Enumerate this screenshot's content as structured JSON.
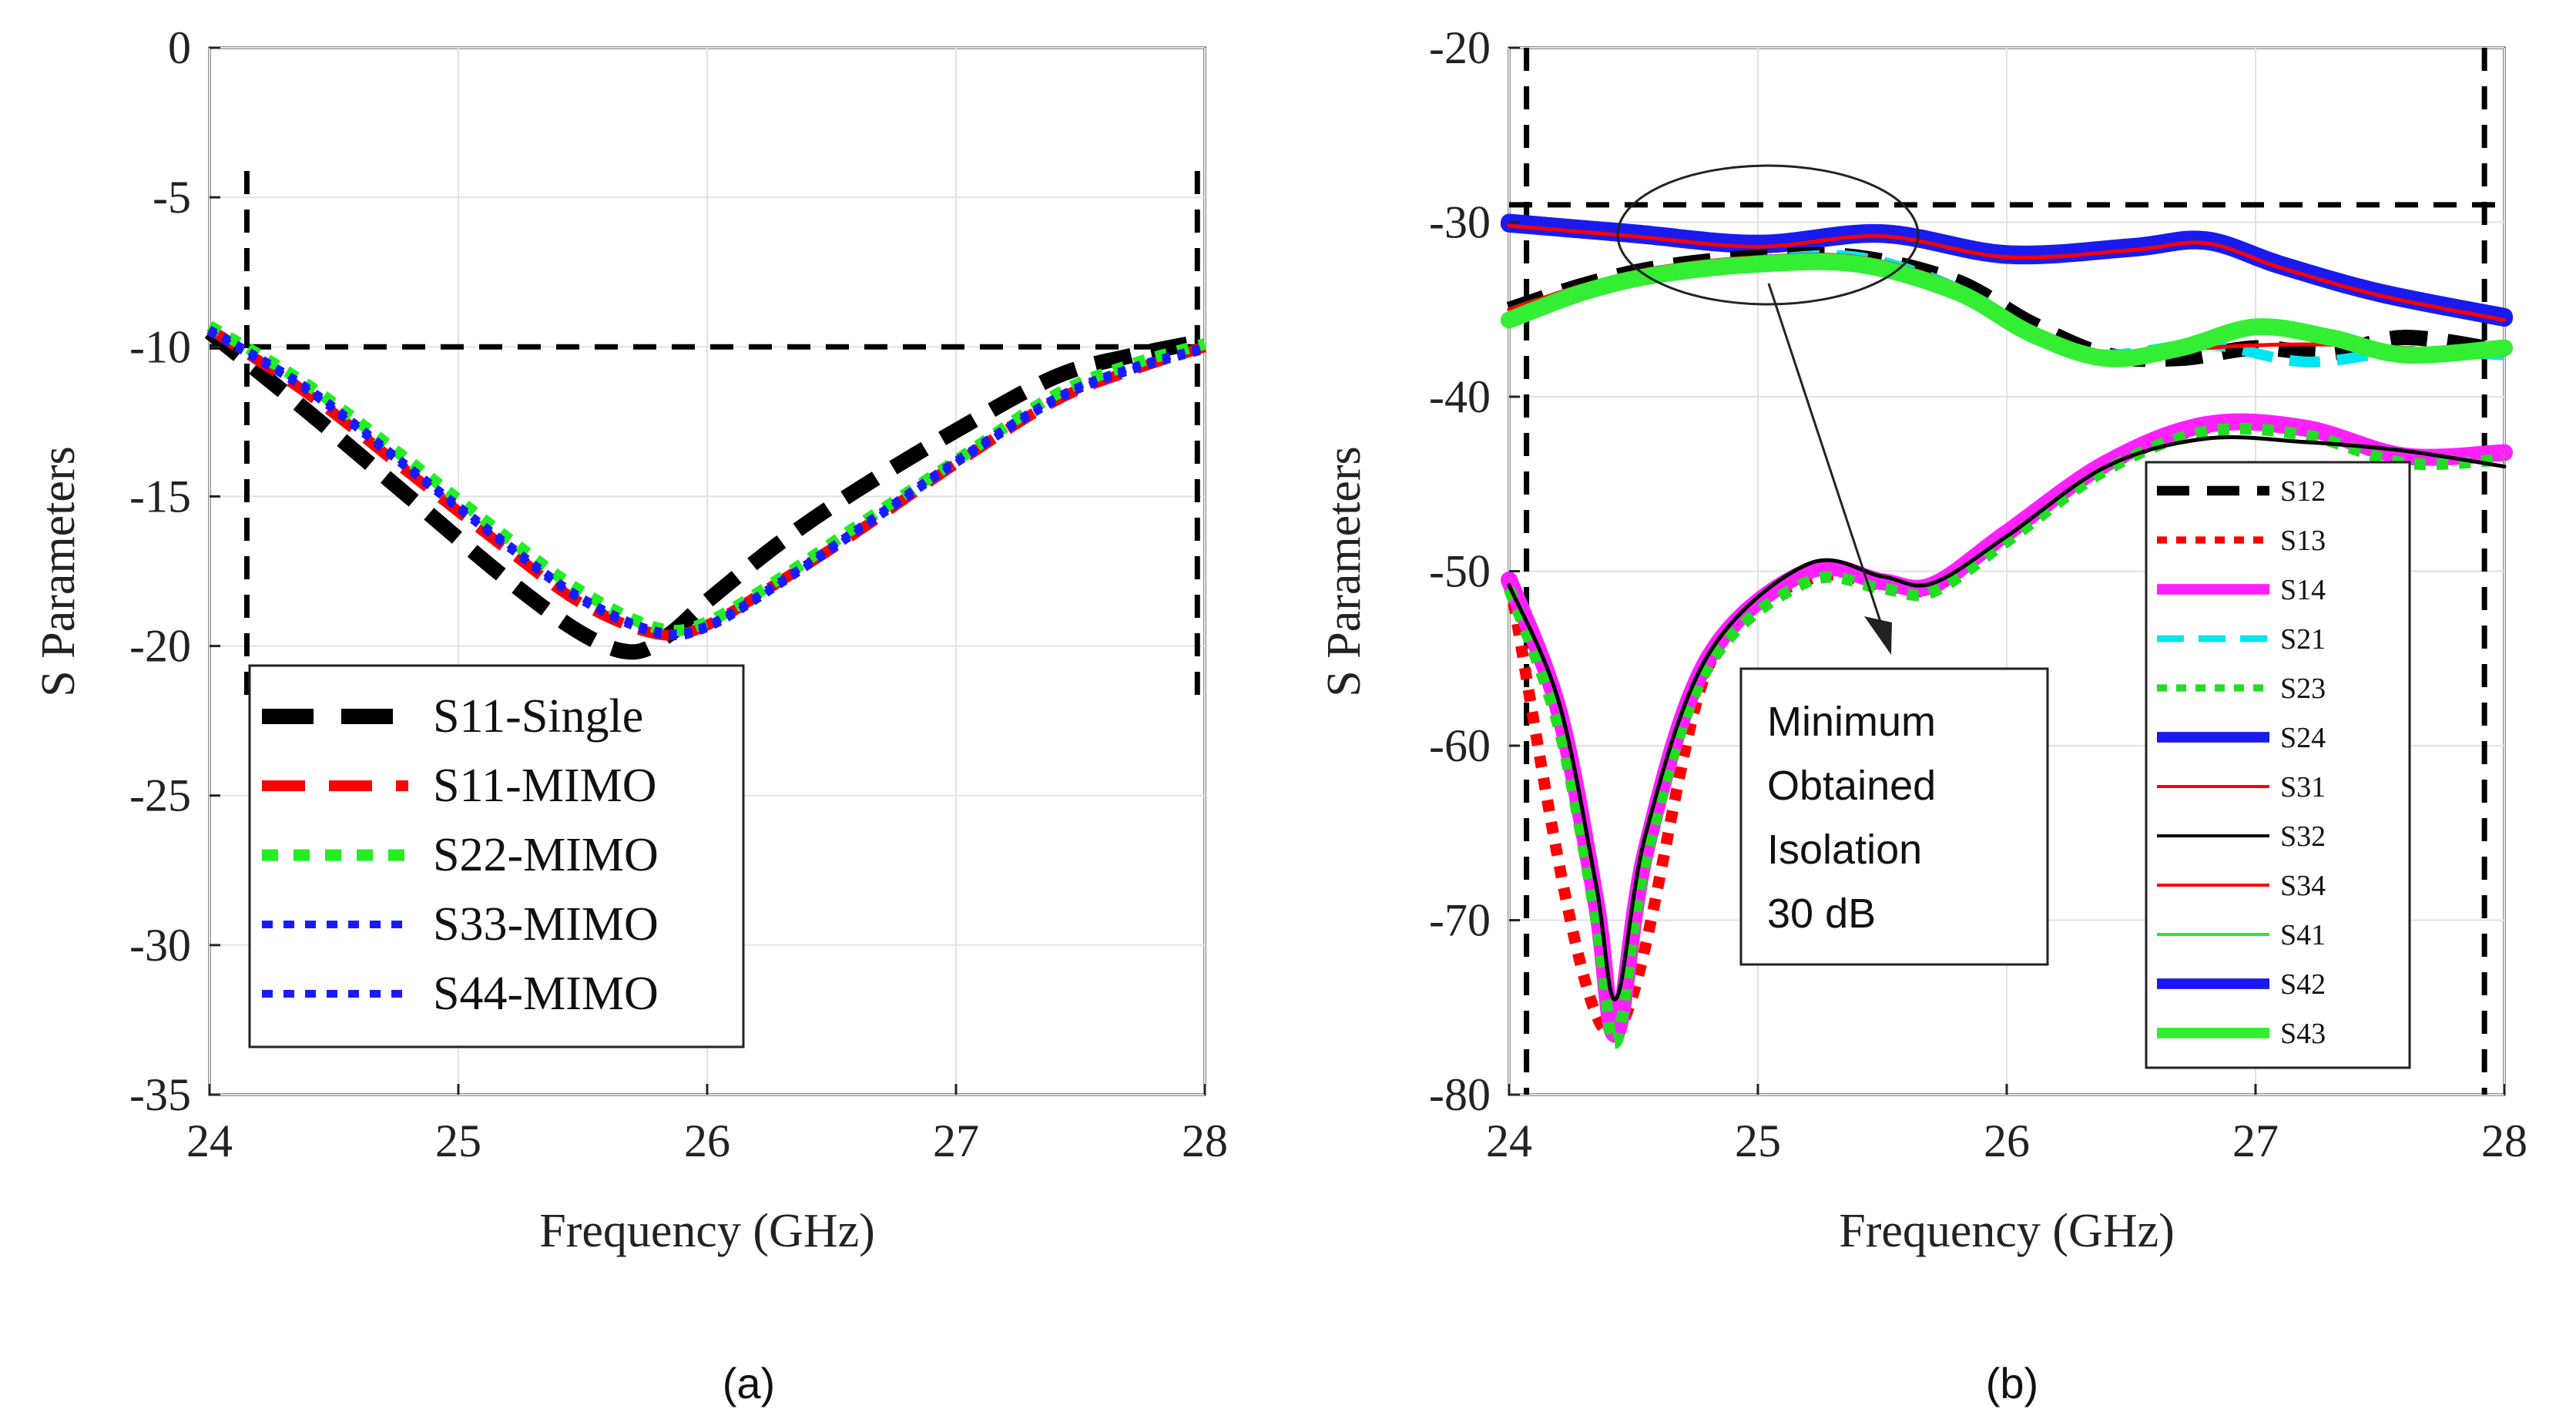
{
  "chart_data": [
    {
      "type": "line",
      "panel": "a",
      "caption": "(a)",
      "xlabel": "Frequency (GHz)",
      "ylabel": "S Parameters",
      "xlim": [
        24,
        28
      ],
      "ylim": [
        -35,
        0
      ],
      "xticks": [
        24,
        25,
        26,
        27,
        28
      ],
      "xtick_labels": [
        "24",
        "25",
        "26",
        "27",
        "28"
      ],
      "yticks": [
        0,
        -5,
        -10,
        -15,
        -20,
        -25,
        -30,
        -35
      ],
      "ytick_labels": [
        "0",
        "-5",
        "-10",
        "-15",
        "-20",
        "-25",
        "-30",
        "-35"
      ],
      "grid": true,
      "legend_position": "bottom-left",
      "reference_lines": [
        {
          "orientation": "horizontal",
          "value": -10,
          "color": "#000000"
        },
        {
          "orientation": "vertical",
          "value": 24.15,
          "color": "#000000"
        },
        {
          "orientation": "vertical",
          "value": 27.97,
          "color": "#000000"
        }
      ],
      "series": [
        {
          "name": "S11-Single",
          "color": "#000000",
          "style": "dash-thick",
          "x": [
            24,
            24.4,
            24.8,
            25.2,
            25.5,
            25.7,
            25.85,
            26.0,
            26.3,
            26.6,
            27.0,
            27.4,
            27.7,
            28
          ],
          "y": [
            -9.5,
            -12.2,
            -15.0,
            -17.8,
            -19.6,
            -20.2,
            -19.6,
            -18.5,
            -16.5,
            -14.8,
            -12.8,
            -11.0,
            -10.3,
            -9.8
          ]
        },
        {
          "name": "S11-MIMO",
          "color": "#ff0000",
          "style": "dash",
          "x": [
            24,
            24.4,
            24.8,
            25.2,
            25.5,
            25.8,
            26.0,
            26.3,
            26.6,
            27.0,
            27.4,
            27.7,
            28
          ],
          "y": [
            -9.4,
            -11.6,
            -14.2,
            -16.8,
            -18.6,
            -19.6,
            -19.3,
            -17.8,
            -16.2,
            -13.9,
            -11.8,
            -10.8,
            -10.0
          ]
        },
        {
          "name": "S22-MIMO",
          "color": "#22ee22",
          "style": "dot-thick",
          "x": [
            24,
            24.4,
            24.8,
            25.2,
            25.5,
            25.8,
            26.0,
            26.3,
            26.6,
            27.0,
            27.4,
            27.7,
            28
          ],
          "y": [
            -9.3,
            -11.3,
            -13.8,
            -16.4,
            -18.2,
            -19.4,
            -19.2,
            -17.7,
            -16.0,
            -13.8,
            -11.6,
            -10.6,
            -9.9
          ]
        },
        {
          "name": "S33-MIMO",
          "color": "#1a1aff",
          "style": "dot",
          "x": [
            24,
            24.4,
            24.8,
            25.2,
            25.5,
            25.8,
            26.0,
            26.3,
            26.6,
            27.0,
            27.4,
            27.7,
            28
          ],
          "y": [
            -9.4,
            -11.4,
            -14.0,
            -16.6,
            -18.4,
            -19.5,
            -19.3,
            -17.8,
            -16.1,
            -13.8,
            -11.7,
            -10.7,
            -10.0
          ]
        },
        {
          "name": "S44-MIMO",
          "color": "#1a1aff",
          "style": "dot",
          "x": [
            24,
            24.4,
            24.8,
            25.2,
            25.5,
            25.8,
            26.0,
            26.3,
            26.6,
            27.0,
            27.4,
            27.7,
            28
          ],
          "y": [
            -9.5,
            -11.5,
            -14.1,
            -16.7,
            -18.5,
            -19.6,
            -19.4,
            -17.9,
            -16.2,
            -13.9,
            -11.8,
            -10.8,
            -10.1
          ]
        }
      ]
    },
    {
      "type": "line",
      "panel": "b",
      "caption": "(b)",
      "xlabel": "Frequency (GHz)",
      "ylabel": "S Parameters",
      "xlim": [
        24,
        28
      ],
      "ylim": [
        -80,
        -20
      ],
      "xticks": [
        24,
        25,
        26,
        27,
        28
      ],
      "xtick_labels": [
        "24",
        "25",
        "26",
        "27",
        "28"
      ],
      "yticks": [
        -20,
        -30,
        -40,
        -50,
        -60,
        -70,
        -80
      ],
      "ytick_labels": [
        "-20",
        "-30",
        "-40",
        "-50",
        "-60",
        "-70",
        "-80"
      ],
      "grid": true,
      "legend_position": "bottom-right",
      "annotation": {
        "lines": [
          "Minimum",
          "Obtained",
          "Isolation",
          "30 dB"
        ],
        "ellipse_center": [
          25.05,
          -31
        ],
        "arrow_from": [
          25.05,
          -33
        ],
        "arrow_to": [
          25.5,
          -54
        ]
      },
      "reference_lines": [
        {
          "orientation": "horizontal",
          "value": -29,
          "color": "#000000"
        },
        {
          "orientation": "vertical",
          "value": 24.07,
          "color": "#000000"
        },
        {
          "orientation": "vertical",
          "value": 27.92,
          "color": "#000000"
        }
      ],
      "series": [
        {
          "name": "S12",
          "color": "#000000",
          "style": "dash-thick",
          "x": [
            24,
            24.3,
            24.6,
            25.0,
            25.4,
            25.8,
            26.1,
            26.4,
            26.7,
            27.0,
            27.3,
            27.6,
            28
          ],
          "y": [
            -35,
            -33.6,
            -32.6,
            -32.0,
            -32.0,
            -33.4,
            -35.8,
            -37.6,
            -37.8,
            -37.2,
            -37.5,
            -36.6,
            -37.4
          ]
        },
        {
          "name": "S13",
          "color": "#ff0000",
          "style": "dot-thick",
          "x": [
            24,
            24.4,
            24.8,
            25.2,
            25.5,
            25.7,
            26.0,
            26.4,
            26.8,
            27.2,
            27.6,
            28
          ],
          "y": [
            -50.5,
            -76.5,
            -55.5,
            -50.5,
            -50.8,
            -51.0,
            -48.0,
            -44.0,
            -41.8,
            -41.8,
            -43.5,
            -43.3
          ]
        },
        {
          "name": "S14",
          "color": "#ff20ff",
          "style": "solid-thick",
          "x": [
            24,
            24.2,
            24.35,
            24.43,
            24.55,
            24.8,
            25.2,
            25.5,
            25.7,
            26.0,
            26.4,
            26.8,
            27.2,
            27.6,
            28
          ],
          "y": [
            -50.5,
            -58,
            -69,
            -76.5,
            -66,
            -55,
            -50.0,
            -50.6,
            -50.8,
            -47.8,
            -43.8,
            -41.6,
            -41.8,
            -43.4,
            -43.2
          ]
        },
        {
          "name": "S21",
          "color": "#00e5ee",
          "style": "dash",
          "x": [
            24,
            24.3,
            24.6,
            25.0,
            25.4,
            25.8,
            26.1,
            26.4,
            26.8,
            27.2,
            27.6,
            28
          ],
          "y": [
            -35.2,
            -33.8,
            -32.8,
            -32.2,
            -32.0,
            -33.8,
            -36.6,
            -37.6,
            -37.0,
            -38.0,
            -37.4,
            -37.6
          ]
        },
        {
          "name": "S23",
          "color": "#22dd22",
          "style": "dot-thick",
          "x": [
            24,
            24.2,
            24.35,
            24.43,
            24.55,
            24.8,
            25.2,
            25.5,
            25.7,
            26.0,
            26.4,
            26.8,
            27.2,
            27.6,
            28
          ],
          "y": [
            -51.0,
            -59,
            -70,
            -77.0,
            -66.5,
            -55.5,
            -50.6,
            -51.0,
            -51.2,
            -48.3,
            -44.2,
            -42.0,
            -42.2,
            -43.8,
            -43.6
          ]
        },
        {
          "name": "S24",
          "color": "#1a1aee",
          "style": "solid-thick",
          "x": [
            24,
            24.5,
            25.0,
            25.5,
            26.0,
            26.5,
            26.8,
            27.1,
            27.5,
            28
          ],
          "y": [
            -30.0,
            -30.6,
            -31.2,
            -30.6,
            -31.8,
            -31.4,
            -31.0,
            -32.4,
            -34.0,
            -35.4
          ]
        },
        {
          "name": "S31",
          "color": "#ff0000",
          "style": "solid",
          "x": [
            24,
            24.5,
            25.0,
            25.5,
            26.0,
            26.5,
            26.8,
            27.1,
            27.5,
            28
          ],
          "y": [
            -30.2,
            -30.8,
            -31.4,
            -30.8,
            -32.0,
            -31.6,
            -31.2,
            -32.6,
            -34.2,
            -35.6
          ]
        },
        {
          "name": "S32",
          "color": "#000000",
          "style": "solid",
          "x": [
            24,
            24.2,
            24.35,
            24.43,
            24.55,
            24.8,
            25.2,
            25.5,
            25.7,
            26.0,
            26.4,
            26.8,
            27.2,
            27.6,
            28
          ],
          "y": [
            -50.8,
            -57.5,
            -68,
            -74.5,
            -65,
            -54.8,
            -49.6,
            -50.3,
            -50.7,
            -48.0,
            -44.0,
            -42.4,
            -42.6,
            -43.1,
            -44.0
          ]
        },
        {
          "name": "S34",
          "color": "#ff0000",
          "style": "solid",
          "x": [
            24,
            24.3,
            24.6,
            25.0,
            25.4,
            25.8,
            26.1,
            26.4,
            26.8,
            27.2,
            27.6,
            28
          ],
          "y": [
            -35.0,
            -33.6,
            -32.6,
            -32.0,
            -32.0,
            -33.6,
            -36.2,
            -37.8,
            -37.2,
            -37.0,
            -37.2,
            -37.6
          ]
        },
        {
          "name": "S41",
          "color": "#22ee22",
          "style": "solid",
          "x": [
            24,
            24.2,
            24.35,
            24.43,
            24.55,
            24.8,
            25.2,
            25.5,
            25.7,
            26.0,
            26.4,
            26.8,
            27.2,
            27.6,
            28
          ],
          "y": [
            -50.8,
            -57.5,
            -68,
            -74.5,
            -65,
            -54.8,
            -49.6,
            -50.3,
            -50.7,
            -48.0,
            -44.0,
            -42.4,
            -42.6,
            -43.1,
            -44.0
          ]
        },
        {
          "name": "S42",
          "color": "#1a1aee",
          "style": "solid-thick",
          "x": [
            24,
            24.5,
            25.0,
            25.5,
            26.0,
            26.5,
            26.8,
            27.1,
            27.5,
            28
          ],
          "y": [
            -30.1,
            -30.7,
            -31.3,
            -30.7,
            -31.9,
            -31.5,
            -31.1,
            -32.5,
            -34.1,
            -35.5
          ]
        },
        {
          "name": "S43",
          "color": "#33ee33",
          "style": "solid-thick",
          "x": [
            24,
            24.3,
            24.6,
            25.0,
            25.4,
            25.8,
            26.1,
            26.4,
            26.7,
            27.0,
            27.3,
            27.6,
            28
          ],
          "y": [
            -35.6,
            -34.0,
            -33.0,
            -32.4,
            -32.4,
            -34.0,
            -36.4,
            -37.8,
            -37.2,
            -36.0,
            -36.6,
            -37.6,
            -37.2
          ]
        }
      ]
    }
  ]
}
